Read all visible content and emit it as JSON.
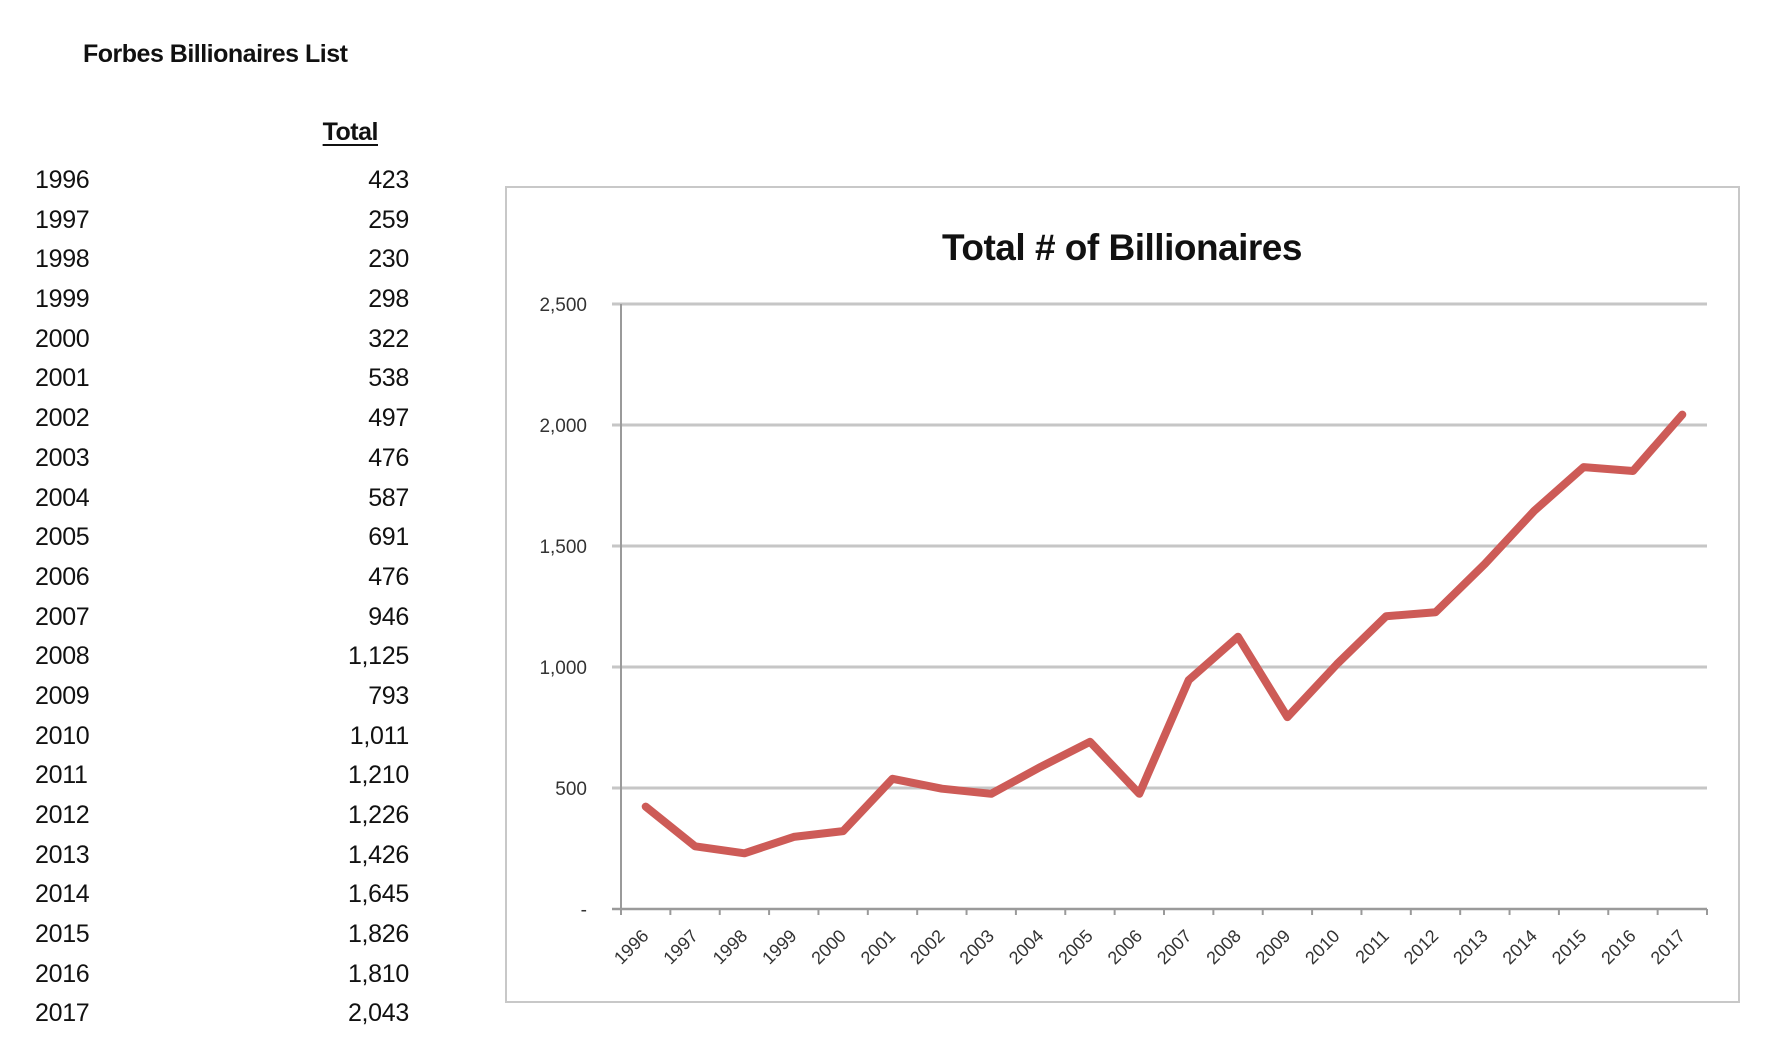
{
  "table": {
    "title": "Forbes Billionaires List",
    "column_header": "Total",
    "rows": [
      {
        "year": "1996",
        "total": "423"
      },
      {
        "year": "1997",
        "total": "259"
      },
      {
        "year": "1998",
        "total": "230"
      },
      {
        "year": "1999",
        "total": "298"
      },
      {
        "year": "2000",
        "total": "322"
      },
      {
        "year": "2001",
        "total": "538"
      },
      {
        "year": "2002",
        "total": "497"
      },
      {
        "year": "2003",
        "total": "476"
      },
      {
        "year": "2004",
        "total": "587"
      },
      {
        "year": "2005",
        "total": "691"
      },
      {
        "year": "2006",
        "total": "476"
      },
      {
        "year": "2007",
        "total": "946"
      },
      {
        "year": "2008",
        "total": "1,125"
      },
      {
        "year": "2009",
        "total": "793"
      },
      {
        "year": "2010",
        "total": "1,011"
      },
      {
        "year": "2011",
        "total": "1,210"
      },
      {
        "year": "2012",
        "total": "1,226"
      },
      {
        "year": "2013",
        "total": "1,426"
      },
      {
        "year": "2014",
        "total": "1,645"
      },
      {
        "year": "2015",
        "total": "1,826"
      },
      {
        "year": "2016",
        "total": "1,810"
      },
      {
        "year": "2017",
        "total": "2,043"
      }
    ]
  },
  "chart_data": {
    "type": "line",
    "title": "Total # of Billionaires",
    "xlabel": "",
    "ylabel": "",
    "categories": [
      "1996",
      "1997",
      "1998",
      "1999",
      "2000",
      "2001",
      "2002",
      "2003",
      "2004",
      "2005",
      "2006",
      "2007",
      "2008",
      "2009",
      "2010",
      "2011",
      "2012",
      "2013",
      "2014",
      "2015",
      "2016",
      "2017"
    ],
    "series": [
      {
        "name": "Total",
        "color": "#cd5b57",
        "values": [
          423,
          259,
          230,
          298,
          322,
          538,
          497,
          476,
          587,
          691,
          476,
          946,
          1125,
          793,
          1011,
          1210,
          1226,
          1426,
          1645,
          1826,
          1810,
          2043
        ]
      }
    ],
    "ylim": [
      0,
      2500
    ],
    "yticks": [
      0,
      500,
      1000,
      1500,
      2000,
      2500
    ],
    "ytick_labels": [
      "-",
      "500",
      "1,000",
      "1,500",
      "2,000",
      "2,500"
    ],
    "grid": true,
    "legend": "none",
    "x_label_rotation_deg": -45
  }
}
